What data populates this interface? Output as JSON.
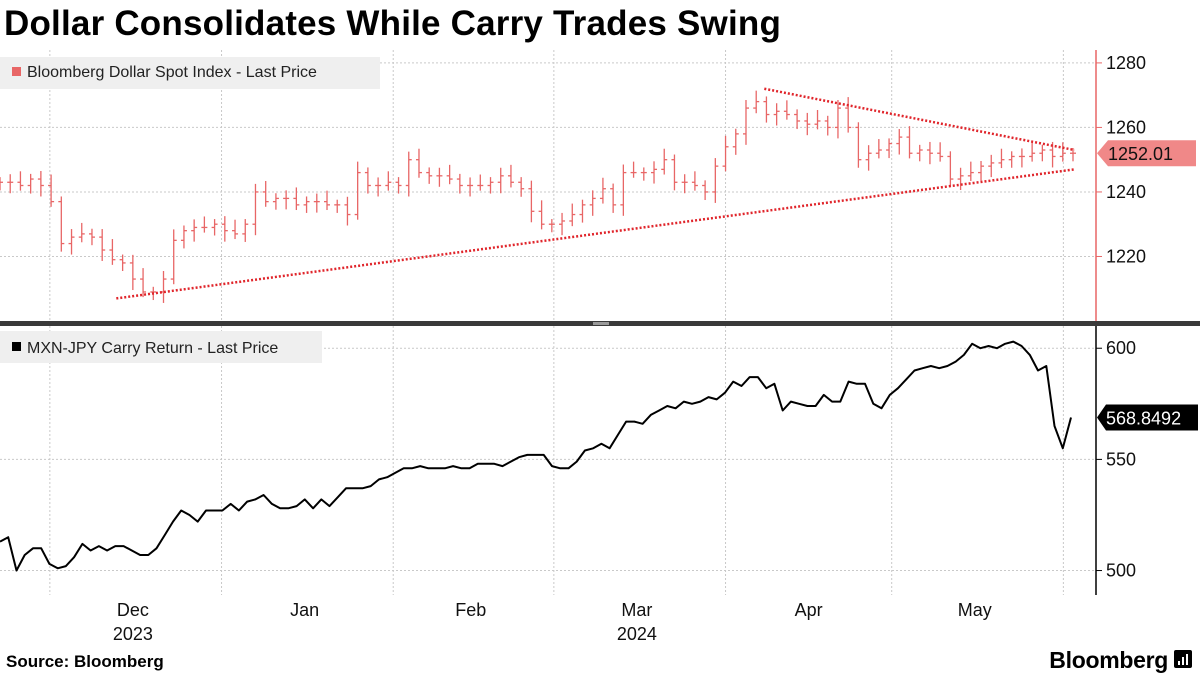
{
  "title": "Dollar Consolidates While Carry Trades Swing",
  "source": "Source: Bloomberg",
  "brand": "Bloomberg",
  "colors": {
    "top_series": "#e86666",
    "trendline": "#e0252b",
    "bottom_series": "#000000",
    "grid": "#c9c9c9"
  },
  "chart_data": [
    {
      "type": "line",
      "style": "ohlc-bars",
      "series_name": "Bloomberg Dollar Spot Index - Last Price",
      "last_value_label": "1252.01",
      "ylim": [
        1200,
        1284
      ],
      "yticks": [
        "1280",
        "1260",
        "1240",
        "1220"
      ],
      "grid": true,
      "legend_position": "top-left",
      "approx_values": [
        1243,
        1243,
        1242,
        1244,
        1242,
        1237,
        1224,
        1226,
        1227,
        1226,
        1222,
        1219,
        1218,
        1213,
        1209,
        1209,
        1213,
        1225,
        1228,
        1229,
        1229,
        1230,
        1228,
        1227,
        1230,
        1240,
        1237,
        1238,
        1238,
        1236,
        1237,
        1237,
        1236,
        1236,
        1233,
        1246,
        1242,
        1242,
        1243,
        1242,
        1250,
        1246,
        1245,
        1245,
        1244,
        1242,
        1242,
        1242,
        1243,
        1245,
        1243,
        1241,
        1234,
        1230,
        1230,
        1231,
        1233,
        1236,
        1238,
        1241,
        1236,
        1246,
        1246,
        1246,
        1247,
        1250,
        1243,
        1243,
        1242,
        1240,
        1248,
        1254,
        1258,
        1266,
        1268,
        1264,
        1265,
        1264,
        1262,
        1261,
        1262,
        1260,
        1266,
        1260,
        1250,
        1252,
        1253,
        1255,
        1257,
        1252,
        1253,
        1252,
        1251,
        1244,
        1245,
        1246,
        1248,
        1249,
        1250,
        1251,
        1251,
        1252,
        1253,
        1251,
        1252,
        1252.01
      ],
      "trendlines": [
        {
          "from": [
            "2023-12-13",
            1207
          ],
          "to": [
            "2024-06-03",
            1247
          ]
        },
        {
          "from": [
            "2024-04-08",
            1272
          ],
          "to": [
            "2024-06-03",
            1253
          ]
        }
      ]
    },
    {
      "type": "line",
      "series_name": "MXN-JPY Carry Return - Last Price",
      "last_value_label": "568.8492",
      "ylim": [
        489,
        610
      ],
      "yticks": [
        "600",
        "550",
        "500"
      ],
      "grid": true,
      "legend_position": "top-left",
      "approx_values": [
        513,
        515,
        500,
        507,
        510,
        510,
        503,
        501,
        502,
        506,
        512,
        509,
        511,
        509,
        511,
        511,
        509,
        507,
        507,
        510,
        516,
        522,
        527,
        525,
        522,
        527,
        527,
        527,
        530,
        527,
        531,
        532,
        534,
        530,
        528,
        528,
        529,
        532,
        528,
        532,
        529,
        533,
        537,
        537,
        537,
        538,
        541,
        542,
        544,
        546,
        546,
        547,
        546,
        546,
        546,
        547,
        546,
        546,
        548,
        548,
        548,
        547,
        549,
        551,
        552,
        552,
        552,
        547,
        546,
        546,
        549,
        554,
        555,
        557,
        555,
        561,
        567,
        567,
        566,
        570,
        572,
        574,
        573,
        576,
        575,
        576,
        578,
        577,
        580,
        585,
        583,
        587,
        587,
        582,
        584,
        572,
        576,
        575,
        574,
        574,
        579,
        576,
        576,
        585,
        584,
        584,
        575,
        573,
        579,
        582,
        586,
        590,
        591,
        592,
        591,
        592,
        594,
        597,
        602,
        600,
        601,
        600,
        602,
        603,
        601,
        597,
        590,
        592,
        565,
        555,
        568.8492
      ]
    }
  ],
  "x_axis": {
    "months": [
      "Dec",
      "Jan",
      "Feb",
      "Mar",
      "Apr",
      "May"
    ],
    "years": [
      "2023",
      "2024"
    ]
  }
}
